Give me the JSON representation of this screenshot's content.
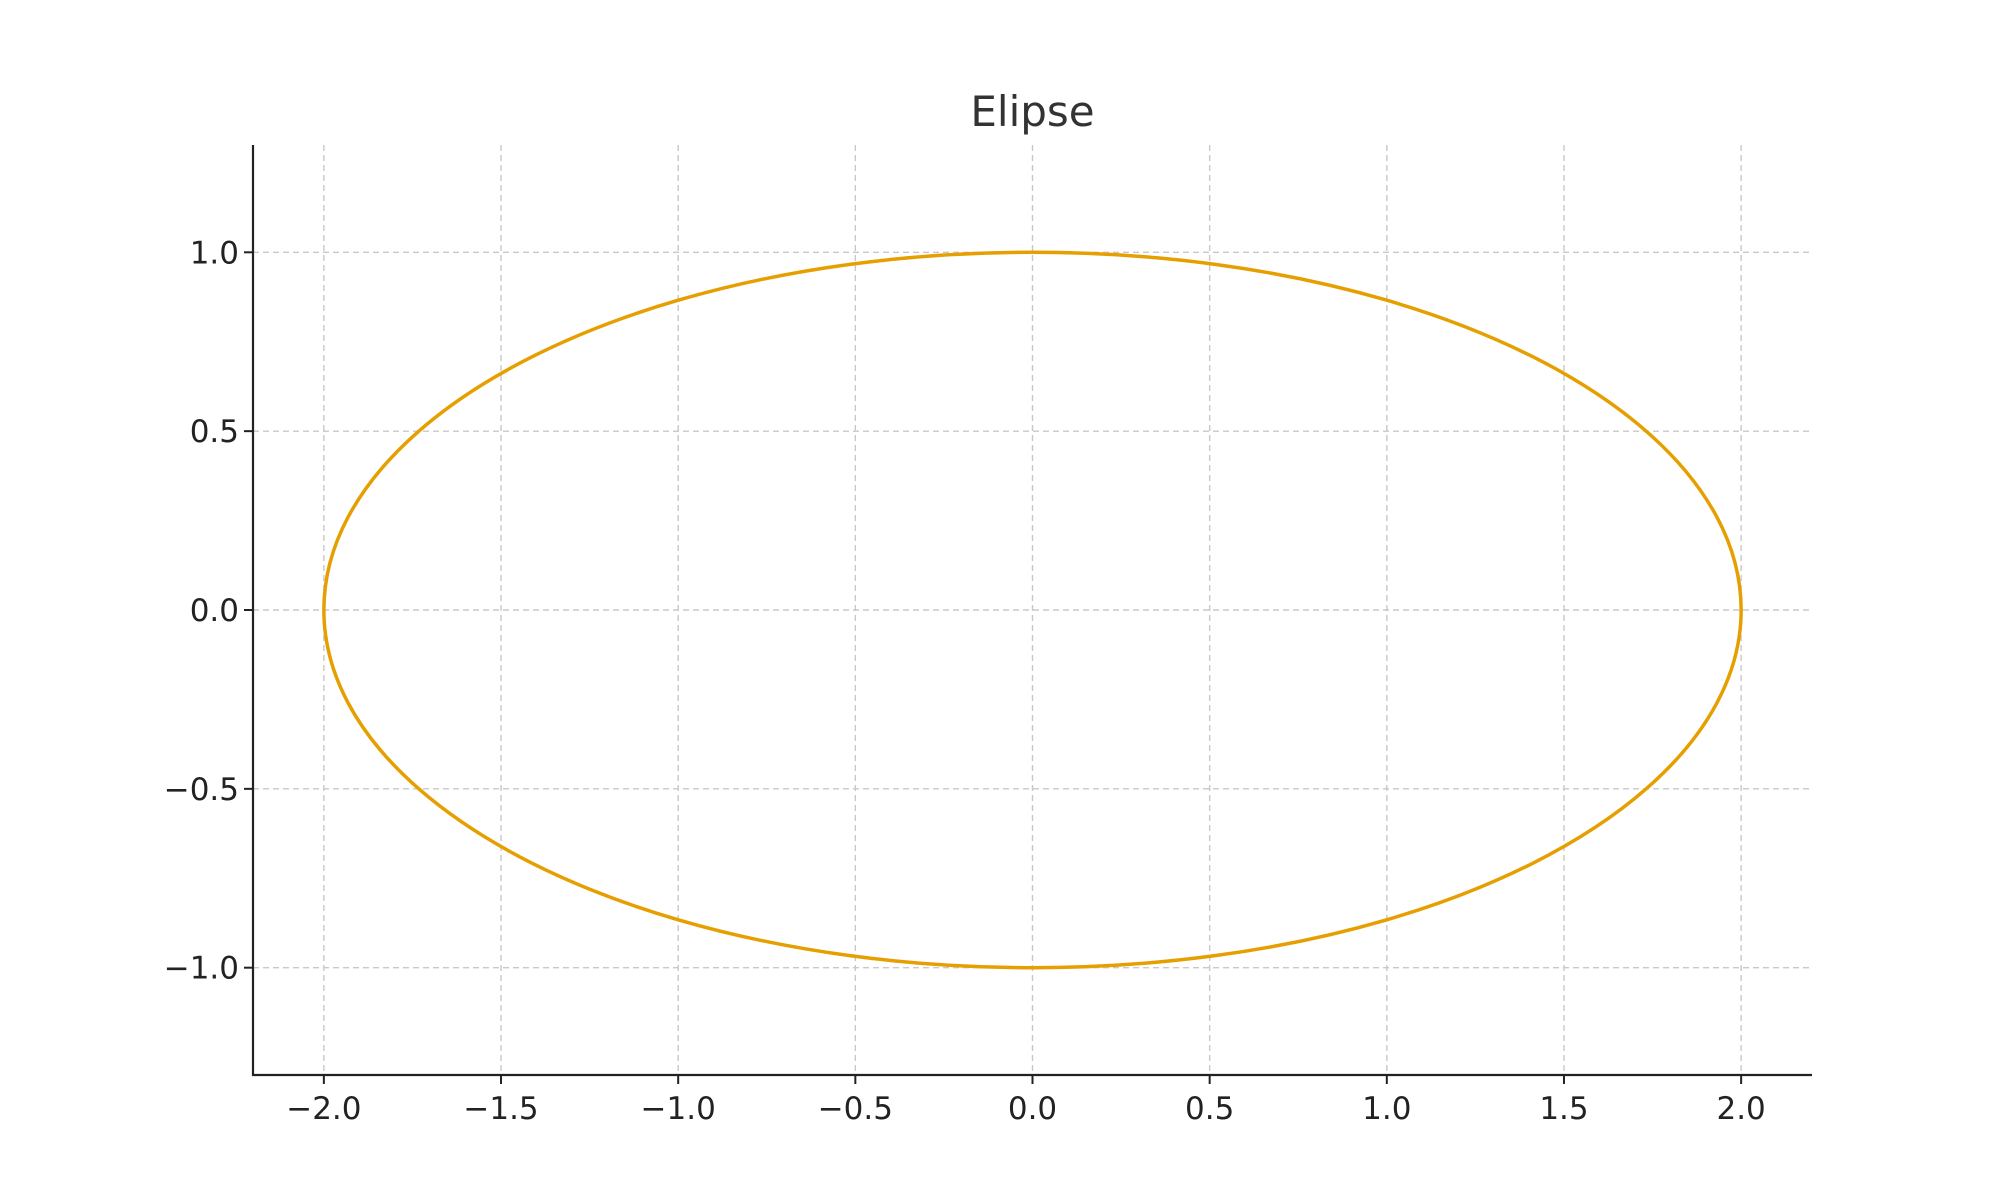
{
  "chart_data": {
    "type": "line",
    "title": "Elipse",
    "xlabel": "",
    "ylabel": "",
    "xlim": [
      -2.2,
      2.2
    ],
    "ylim": [
      -1.3,
      1.3
    ],
    "grid": true,
    "x_ticks": [
      -2.0,
      -1.5,
      -1.0,
      -0.5,
      0.0,
      0.5,
      1.0,
      1.5,
      2.0
    ],
    "x_tick_labels": [
      "−2.0",
      "−1.5",
      "−1.0",
      "−0.5",
      "0.0",
      "0.5",
      "1.0",
      "1.5",
      "2.0"
    ],
    "y_ticks": [
      -1.0,
      -0.5,
      0.0,
      0.5,
      1.0
    ],
    "y_tick_labels": [
      "−1.0",
      "−0.5",
      "0.0",
      "0.5",
      "1.0"
    ],
    "series": [
      {
        "color": "#E69F00",
        "x": [
          2.0,
          1.932,
          1.732,
          1.414,
          1.0,
          0.518,
          0.0,
          -0.518,
          -1.0,
          -1.414,
          -1.732,
          -1.932,
          -2.0,
          -1.932,
          -1.732,
          -1.414,
          -1.0,
          -0.518,
          0.0,
          0.518,
          1.0,
          1.414,
          1.732,
          1.932,
          2.0
        ],
        "y": [
          0.0,
          0.259,
          0.5,
          0.707,
          0.866,
          0.966,
          1.0,
          0.966,
          0.866,
          0.707,
          0.5,
          0.259,
          0.0,
          -0.259,
          -0.5,
          -0.707,
          -0.866,
          -0.966,
          -1.0,
          -0.966,
          -0.866,
          -0.707,
          -0.5,
          -0.259,
          0.0
        ]
      }
    ]
  }
}
